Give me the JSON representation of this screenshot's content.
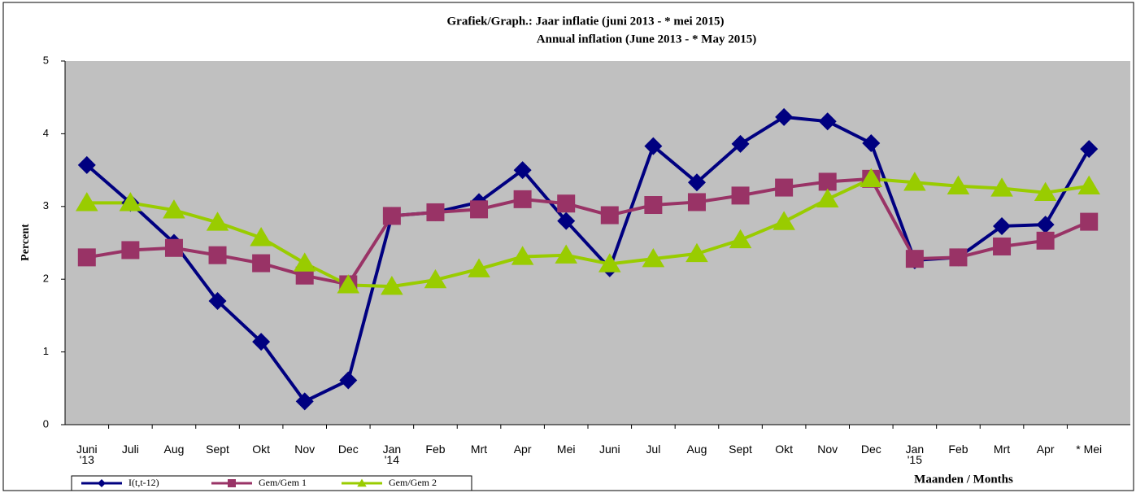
{
  "chart_data": {
    "type": "line",
    "title": "Grafiek/Graph.: Jaar inflatie (juni 2013 - * mei 2015)",
    "subtitle": "Annual inflation (June 2013 - * May 2015)",
    "y_label": "Percent",
    "x_label": "Maanden / Months",
    "categories": [
      "Juni\n'13",
      "Juli",
      "Aug",
      "Sept",
      "Okt",
      "Nov",
      "Dec",
      "Jan\n'14",
      "Feb",
      "Mrt",
      "Apr",
      "Mei",
      "Juni",
      "Jul",
      "Aug",
      "Sept",
      "Okt",
      "Nov",
      "Dec",
      "Jan\n'15",
      "Feb",
      "Mrt",
      "Apr",
      "* Mei"
    ],
    "series": [
      {
        "name": "I(t,t-12)",
        "color": "#000080",
        "marker": "diamond",
        "values": [
          3.57,
          3.05,
          2.5,
          1.7,
          1.14,
          0.32,
          0.61,
          2.87,
          2.92,
          3.06,
          3.5,
          2.8,
          2.15,
          3.83,
          3.33,
          3.86,
          4.23,
          4.17,
          3.87,
          2.26,
          2.3,
          2.73,
          2.75,
          3.79
        ]
      },
      {
        "name": "Gem/Gem 1",
        "color": "#993366",
        "marker": "square",
        "values": [
          2.3,
          2.4,
          2.43,
          2.33,
          2.22,
          2.05,
          1.93,
          2.87,
          2.92,
          2.96,
          3.1,
          3.04,
          2.88,
          3.02,
          3.06,
          3.15,
          3.26,
          3.34,
          3.38,
          2.28,
          2.3,
          2.45,
          2.53,
          2.79
        ]
      },
      {
        "name": "Gem/Gem 2",
        "color": "#99cc00",
        "marker": "triangle",
        "values": [
          3.05,
          3.05,
          2.95,
          2.78,
          2.57,
          2.22,
          1.92,
          1.9,
          1.99,
          2.14,
          2.31,
          2.33,
          2.21,
          2.28,
          2.35,
          2.54,
          2.79,
          3.1,
          3.38,
          3.33,
          3.28,
          3.25,
          3.19,
          3.28
        ]
      }
    ],
    "ylim": [
      0,
      5
    ],
    "yticks": [
      0,
      1,
      2,
      3,
      4,
      5
    ],
    "grid": false,
    "legend": "bottom-left"
  }
}
